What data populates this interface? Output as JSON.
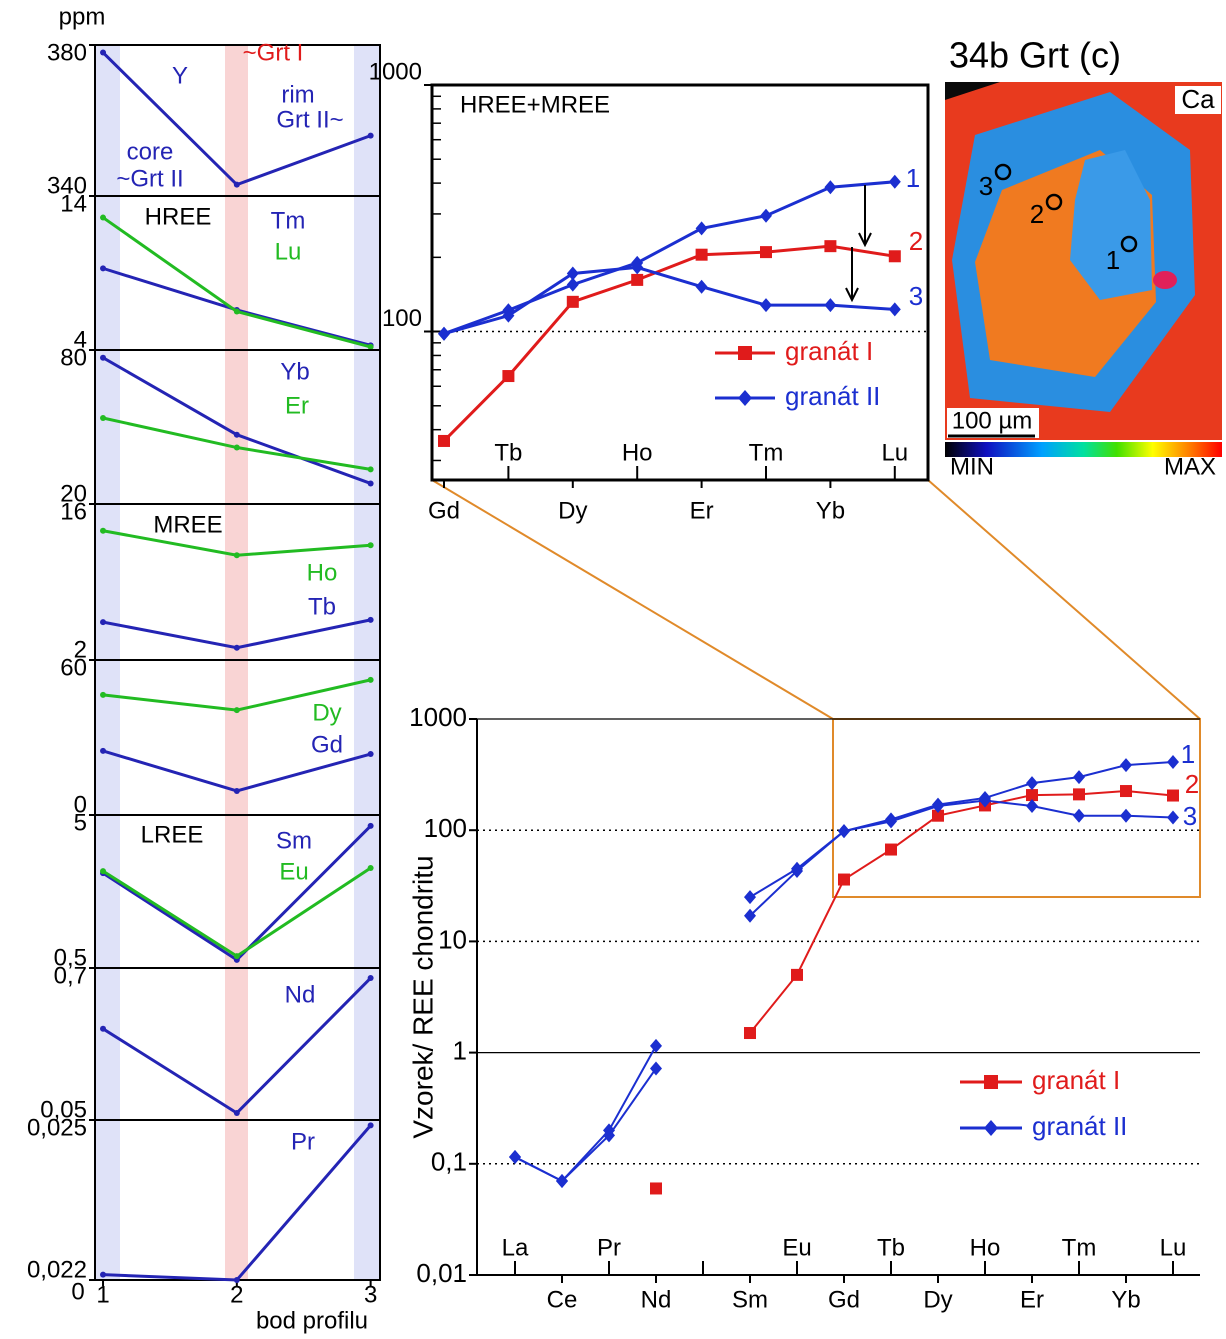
{
  "chart_data": [
    {
      "type": "line",
      "y_unit": "ppm",
      "x": [
        1,
        2,
        3
      ],
      "xlim": [
        0.94,
        3.07
      ],
      "ylim": [
        340,
        380
      ],
      "yticks": [
        340,
        380
      ],
      "series": [
        {
          "name": "Y",
          "color": "#2424b4",
          "values": [
            378,
            343,
            356
          ]
        }
      ],
      "annotations": [
        {
          "text": "core",
          "color": "#2424b4"
        },
        {
          "text": "~Grt II",
          "color": "#2424b4"
        },
        {
          "text": "~Grt I",
          "color": "#e01b1b"
        },
        {
          "text": "rim",
          "color": "#2424b4"
        },
        {
          "text": "Grt II~",
          "color": "#2424b4"
        }
      ]
    },
    {
      "type": "line",
      "x": [
        1,
        2,
        3
      ],
      "xlim": [
        0.94,
        3.07
      ],
      "ylim": [
        4,
        14
      ],
      "yticks": [
        4,
        14
      ],
      "series": [
        {
          "name": "Tm",
          "color": "#2424b4",
          "values": [
            9.3,
            6.6,
            4.3
          ]
        },
        {
          "name": "Lu",
          "color": "#22bb22",
          "values": [
            12.6,
            6.5,
            4.2
          ]
        }
      ],
      "annotations": [
        {
          "text": "HREE",
          "color": "#000000"
        }
      ]
    },
    {
      "type": "line",
      "x": [
        1,
        2,
        3
      ],
      "xlim": [
        0.94,
        3.07
      ],
      "ylim": [
        20,
        80
      ],
      "yticks": [
        20,
        80
      ],
      "series": [
        {
          "name": "Yb",
          "color": "#2424b4",
          "values": [
            77,
            47,
            28
          ]
        },
        {
          "name": "Er",
          "color": "#22bb22",
          "values": [
            53.5,
            42,
            33.5
          ]
        }
      ]
    },
    {
      "type": "line",
      "x": [
        1,
        2,
        3
      ],
      "xlim": [
        0.94,
        3.07
      ],
      "ylim": [
        2,
        16
      ],
      "yticks": [
        2,
        16
      ],
      "series": [
        {
          "name": "Ho",
          "color": "#22bb22",
          "values": [
            13.6,
            11.4,
            12.3
          ]
        },
        {
          "name": "Tb",
          "color": "#2424b4",
          "values": [
            5.4,
            3.1,
            5.6
          ]
        }
      ],
      "annotations": [
        {
          "text": "MREE",
          "color": "#000000"
        }
      ]
    },
    {
      "type": "line",
      "x": [
        1,
        2,
        3
      ],
      "xlim": [
        0.94,
        3.07
      ],
      "ylim": [
        0,
        60
      ],
      "yticks": [
        0,
        60
      ],
      "series": [
        {
          "name": "Dy",
          "color": "#22bb22",
          "values": [
            46.5,
            40.6,
            52.3
          ]
        },
        {
          "name": "Gd",
          "color": "#2424b4",
          "values": [
            24.8,
            9.3,
            23.6
          ]
        }
      ]
    },
    {
      "type": "line",
      "x": [
        1,
        2,
        3
      ],
      "xlim": [
        0.94,
        3.07
      ],
      "ylim": [
        0.5,
        5
      ],
      "yticks": [
        {
          "value": 0.5,
          "label": "0,5"
        },
        5
      ],
      "series": [
        {
          "name": "Sm",
          "color": "#2424b4",
          "values": [
            3.29,
            0.74,
            4.68
          ]
        },
        {
          "name": "Eu",
          "color": "#22bb22",
          "values": [
            3.35,
            0.85,
            3.44
          ]
        }
      ],
      "annotations": [
        {
          "text": "LREE",
          "color": "#000000"
        }
      ]
    },
    {
      "type": "line",
      "x": [
        1,
        2,
        3
      ],
      "xlim": [
        0.94,
        3.07
      ],
      "ylim": [
        0.05,
        0.7
      ],
      "yticks": [
        {
          "value": 0.05,
          "label": "0,05"
        },
        {
          "value": 0.7,
          "label": "0,7"
        }
      ],
      "series": [
        {
          "name": "Nd",
          "color": "#2424b4",
          "values": [
            0.44,
            0.08,
            0.657
          ]
        }
      ]
    },
    {
      "type": "line",
      "x": [
        1,
        2,
        3
      ],
      "xlim": [
        0.94,
        3.07
      ],
      "ylim": [
        0.022,
        0.025
      ],
      "yticks": [
        {
          "value": 0.022,
          "label": "0,022"
        },
        {
          "value": 0.025,
          "label": "0,025"
        }
      ],
      "xticks": [
        1,
        2,
        3
      ],
      "x_label": "bod profilu",
      "series": [
        {
          "name": "Pr",
          "color": "#2424b4",
          "values": [
            0.0221,
            0.022,
            0.0249
          ]
        }
      ],
      "annotations": [
        {
          "text": "0",
          "color": "#000000"
        }
      ]
    },
    {
      "type": "line",
      "title": "HREE+MREE",
      "log_y": true,
      "categories": [
        "Gd",
        "Tb",
        "Dy",
        "Ho",
        "Er",
        "Tm",
        "Yb",
        "Lu"
      ],
      "ylim": [
        25,
        1000
      ],
      "yticks": [
        100,
        1000
      ],
      "yminor": [
        30,
        40,
        50,
        60,
        70,
        80,
        90,
        200,
        300,
        400,
        500,
        600,
        700,
        800,
        900
      ],
      "dotted_at": [
        100
      ],
      "series": [
        {
          "name": "granát I",
          "color": "#e01b1b",
          "marker": "square",
          "lines": [
            {
              "label": "2",
              "values": [
                36,
                66,
                132,
                162,
                205,
                210,
                222,
                202
              ]
            }
          ]
        },
        {
          "name": "granát II",
          "color": "#1b2fd0",
          "marker": "diamond",
          "lines": [
            {
              "label": "1",
              "values": [
                98,
                122,
                155,
                190,
                262,
                295,
                385,
                405
              ]
            },
            {
              "label": "3",
              "values": [
                98,
                116,
                172,
                182,
                152,
                128,
                128,
                123
              ]
            }
          ]
        }
      ]
    },
    {
      "type": "line",
      "log_y": true,
      "y_label": "Vzorek/ REE chondritu",
      "categories": [
        "La",
        "Ce",
        "Pr",
        "Nd",
        null,
        "Sm",
        "Eu",
        "Gd",
        "Tb",
        "Dy",
        "Ho",
        "Er",
        "Tm",
        "Yb",
        "Lu"
      ],
      "ylim": [
        0.01,
        1000
      ],
      "yticks": [
        {
          "value": 0.01,
          "label": "0,01"
        },
        {
          "value": 0.1,
          "label": "0,1"
        },
        1,
        10,
        100,
        1000
      ],
      "dotted_at": [
        0.1,
        10,
        100
      ],
      "solid_at": [
        1,
        1000
      ],
      "series": [
        {
          "name": "granát I",
          "color": "#e01b1b",
          "marker": "square",
          "lines": [
            {
              "label": "2",
              "values": [
                null,
                null,
                null,
                0.06,
                null,
                1.5,
                5,
                36,
                67,
                135,
                167,
                207,
                210,
                225,
                205
              ]
            }
          ]
        },
        {
          "name": "granát II",
          "color": "#1b2fd0",
          "marker": "diamond",
          "lines": [
            {
              "label": "1",
              "values": [
                0.115,
                0.07,
                0.2,
                1.15,
                null,
                25,
                45,
                98,
                125,
                170,
                195,
                265,
                300,
                385,
                410
              ]
            },
            {
              "label": "3",
              "values": [
                0.115,
                0.07,
                0.18,
                0.72,
                null,
                17,
                43,
                98,
                120,
                165,
                185,
                165,
                135,
                135,
                130
              ]
            }
          ]
        }
      ]
    }
  ],
  "image": {
    "title": "34b Grt (c)",
    "element": "Ca",
    "scale": "100 µm",
    "min": "MIN",
    "max": "MAX",
    "points": [
      "1",
      "2",
      "3"
    ]
  }
}
